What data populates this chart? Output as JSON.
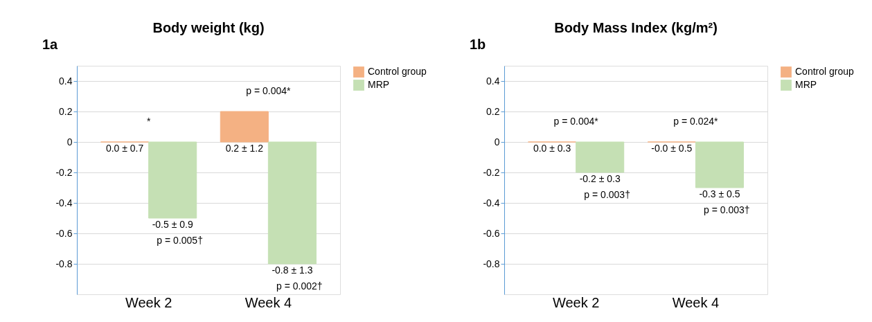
{
  "chart_data": [
    {
      "type": "bar",
      "title": "Body weight (kg)",
      "categories": [
        "Week 2",
        "Week 4"
      ],
      "series": [
        {
          "name": "Control group",
          "color": "#f4b183",
          "values": [
            0.0,
            0.2
          ],
          "value_labels": [
            "0.0 ± 0.7",
            "0.2 ± 1.2"
          ]
        },
        {
          "name": "MRP",
          "color": "#c5e0b4",
          "values": [
            -0.5,
            -0.8
          ],
          "value_labels": [
            "-0.5 ± 0.9",
            "-0.8 ± 1.3"
          ]
        }
      ],
      "ylim": [
        -1.0,
        0.5
      ],
      "yticks": [
        0.4,
        0.2,
        0,
        -0.2,
        -0.4,
        -0.6,
        -0.8
      ],
      "grid": "y",
      "legend": "right",
      "annotations": [
        "1a",
        {
          "text": "*",
          "x": "Week 2",
          "y": 0.0
        },
        {
          "text": "p = 0.005†",
          "x": "Week 2",
          "y": -0.5
        },
        {
          "text": "p = 0.004*",
          "x": "Week 4",
          "y": 0.2
        },
        {
          "text": "p = 0.002†",
          "x": "Week 4",
          "y": -0.8
        }
      ]
    },
    {
      "type": "bar",
      "title": "Body Mass Index (kg/m²)",
      "categories": [
        "Week 2",
        "Week 4"
      ],
      "series": [
        {
          "name": "Control group",
          "color": "#f4b183",
          "values": [
            0.0,
            0.0
          ],
          "value_labels": [
            "0.0 ± 0.3",
            "-0.0 ± 0.5"
          ]
        },
        {
          "name": "MRP",
          "color": "#c5e0b4",
          "values": [
            -0.2,
            -0.3
          ],
          "value_labels": [
            "-0.2 ± 0.3",
            "-0.3 ± 0.5"
          ]
        }
      ],
      "ylim": [
        -1.0,
        0.5
      ],
      "yticks": [
        0.4,
        0.2,
        0,
        -0.2,
        -0.4,
        -0.6,
        -0.8
      ],
      "grid": "y",
      "legend": "right",
      "annotations": [
        "1b",
        {
          "text": "p = 0.004*",
          "x": "Week 2",
          "y": 0.0
        },
        {
          "text": "p = 0.003†",
          "x": "Week 2",
          "y": -0.2
        },
        {
          "text": "p = 0.024*",
          "x": "Week 4",
          "y": 0.0
        },
        {
          "text": "p = 0.003†",
          "x": "Week 4",
          "y": -0.3
        }
      ]
    }
  ]
}
